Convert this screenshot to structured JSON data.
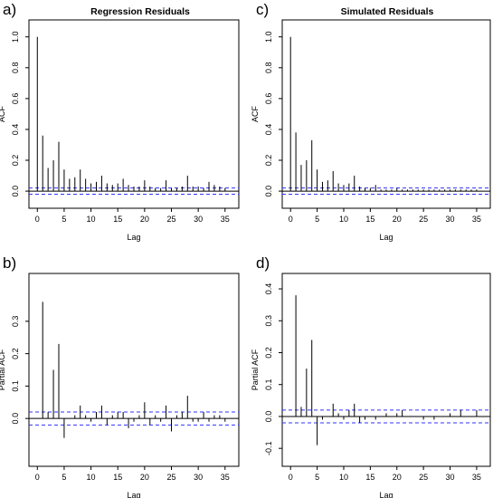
{
  "chart_data": [
    {
      "panel_label": "a)",
      "type": "bar",
      "title": "Regression Residuals",
      "xlabel": "Lag",
      "ylabel": "ACF",
      "xlim": [
        0,
        36
      ],
      "ylim": [
        -0.05,
        1.0
      ],
      "xticks": [
        0,
        5,
        10,
        15,
        20,
        25,
        30,
        35
      ],
      "yticks": [
        0.0,
        0.2,
        0.4,
        0.6,
        0.8,
        1.0
      ],
      "ytick_labels": [
        "0.0",
        "0.2",
        "0.4",
        "0.6",
        "0.8",
        "1.0"
      ],
      "confidence_band": [
        -0.02,
        0.02
      ],
      "lags": [
        0,
        1,
        2,
        3,
        4,
        5,
        6,
        7,
        8,
        9,
        10,
        11,
        12,
        13,
        14,
        15,
        16,
        17,
        18,
        19,
        20,
        21,
        22,
        23,
        24,
        25,
        26,
        27,
        28,
        29,
        30,
        31,
        32,
        33,
        34,
        35
      ],
      "values": [
        1.0,
        0.36,
        0.15,
        0.2,
        0.32,
        0.14,
        0.08,
        0.09,
        0.14,
        0.08,
        0.05,
        0.06,
        0.1,
        0.05,
        0.04,
        0.05,
        0.08,
        0.04,
        0.03,
        0.03,
        0.07,
        0.03,
        0.02,
        0.02,
        0.07,
        0.02,
        0.02,
        0.03,
        0.1,
        0.03,
        0.03,
        0.02,
        0.06,
        0.04,
        0.03,
        0.02
      ]
    },
    {
      "panel_label": "c)",
      "type": "bar",
      "title": "Simulated Residuals",
      "xlabel": "Lag",
      "ylabel": "ACF",
      "xlim": [
        0,
        36
      ],
      "ylim": [
        -0.05,
        1.0
      ],
      "xticks": [
        0,
        5,
        10,
        15,
        20,
        25,
        30,
        35
      ],
      "yticks": [
        0.0,
        0.2,
        0.4,
        0.6,
        0.8,
        1.0
      ],
      "ytick_labels": [
        "0.0",
        "0.2",
        "0.4",
        "0.6",
        "0.8",
        "1.0"
      ],
      "confidence_band": [
        -0.02,
        0.02
      ],
      "lags": [
        0,
        1,
        2,
        3,
        4,
        5,
        6,
        7,
        8,
        9,
        10,
        11,
        12,
        13,
        14,
        15,
        16,
        17,
        18,
        19,
        20,
        21,
        22,
        23,
        24,
        25,
        26,
        27,
        28,
        29,
        30,
        31,
        32,
        33,
        34,
        35
      ],
      "values": [
        1.0,
        0.38,
        0.17,
        0.2,
        0.33,
        0.14,
        0.06,
        0.07,
        0.13,
        0.05,
        0.04,
        0.05,
        0.1,
        0.03,
        0.02,
        0.02,
        0.04,
        0.01,
        0.01,
        0.01,
        0.02,
        0.01,
        0.01,
        0.01,
        0.01,
        0.01,
        0.01,
        0.01,
        0.01,
        0.01,
        0.01,
        0.01,
        0.01,
        0.01,
        0.01,
        0.01
      ]
    },
    {
      "panel_label": "b)",
      "type": "bar",
      "title": "",
      "xlabel": "Lag",
      "ylabel": "Partial ACF",
      "xlim": [
        0,
        36
      ],
      "ylim": [
        -0.1,
        0.4
      ],
      "xticks": [
        0,
        5,
        10,
        15,
        20,
        25,
        30,
        35
      ],
      "yticks": [
        0.0,
        0.1,
        0.2,
        0.3
      ],
      "ytick_labels": [
        "0.0",
        "0.1",
        "0.2",
        "0.3"
      ],
      "confidence_band": [
        -0.02,
        0.02
      ],
      "lags": [
        1,
        2,
        3,
        4,
        5,
        6,
        7,
        8,
        9,
        10,
        11,
        12,
        13,
        14,
        15,
        16,
        17,
        18,
        19,
        20,
        21,
        22,
        23,
        24,
        25,
        26,
        27,
        28,
        29,
        30,
        31,
        32,
        33,
        34,
        35
      ],
      "values": [
        0.36,
        0.02,
        0.15,
        0.23,
        -0.06,
        0.0,
        0.01,
        0.04,
        0.01,
        -0.01,
        0.02,
        0.04,
        -0.02,
        0.01,
        0.02,
        0.02,
        -0.03,
        -0.01,
        0.01,
        0.05,
        -0.02,
        0.01,
        -0.01,
        0.04,
        -0.04,
        0.01,
        0.02,
        0.07,
        -0.01,
        -0.01,
        0.02,
        -0.01,
        0.01,
        0.01,
        -0.01
      ]
    },
    {
      "panel_label": "d)",
      "type": "bar",
      "title": "",
      "xlabel": "Lag",
      "ylabel": "Partial ACF",
      "xlim": [
        0,
        36
      ],
      "ylim": [
        -0.12,
        0.4
      ],
      "xticks": [
        0,
        5,
        10,
        15,
        20,
        25,
        30,
        35
      ],
      "yticks": [
        -0.1,
        0.0,
        0.1,
        0.2,
        0.3,
        0.4
      ],
      "ytick_labels": [
        "-0.1",
        "0.0",
        "0.1",
        "0.2",
        "0.3",
        "0.4"
      ],
      "confidence_band": [
        -0.02,
        0.02
      ],
      "lags": [
        1,
        2,
        3,
        4,
        5,
        6,
        7,
        8,
        9,
        10,
        11,
        12,
        13,
        14,
        15,
        16,
        17,
        18,
        19,
        20,
        21,
        22,
        23,
        24,
        25,
        26,
        27,
        28,
        29,
        30,
        31,
        32,
        33,
        34,
        35
      ],
      "values": [
        0.38,
        0.03,
        0.15,
        0.24,
        -0.09,
        -0.01,
        0.0,
        0.04,
        0.01,
        -0.01,
        0.02,
        0.04,
        -0.02,
        -0.01,
        0.0,
        -0.01,
        0.0,
        0.01,
        0.0,
        0.01,
        0.02,
        0.0,
        0.0,
        0.0,
        -0.01,
        0.0,
        -0.01,
        0.0,
        0.0,
        0.01,
        0.0,
        0.02,
        0.0,
        0.0,
        0.02
      ]
    }
  ]
}
